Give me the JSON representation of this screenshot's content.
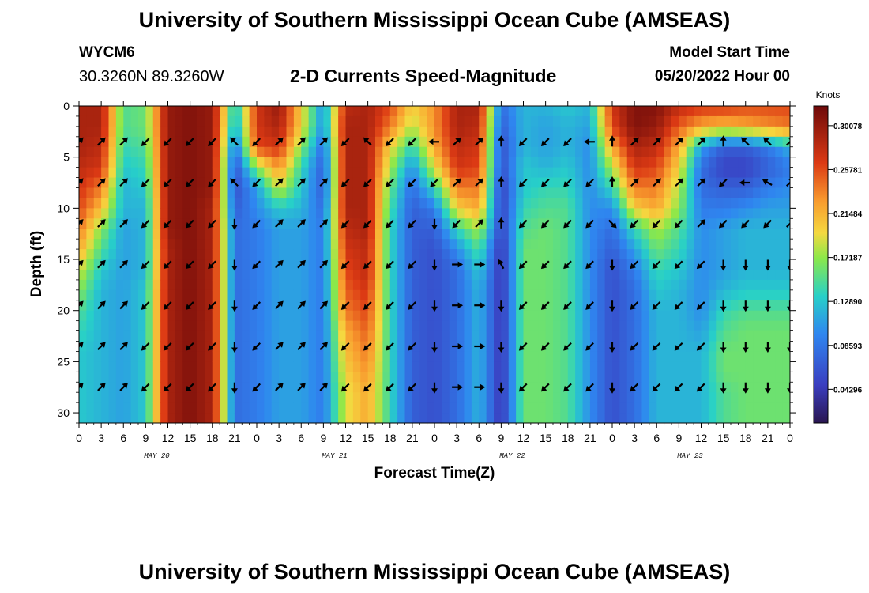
{
  "titles": {
    "main": "University of Southern Mississippi Ocean Cube (AMSEAS)",
    "bottom": "University of Southern Mississippi Ocean Cube (AMSEAS)",
    "subtitle": "2-D Currents Speed-Magnitude"
  },
  "station": {
    "id": "WYCM6",
    "coordinates": "30.3260N  89.3260W"
  },
  "model": {
    "start_label": "Model Start Time",
    "start_value": "05/20/2022 Hour 00"
  },
  "chart_data": {
    "type": "heatmap",
    "title": "2-D Currents Speed-Magnitude",
    "xlabel": "Forecast Time(Z)",
    "ylabel": "Depth (ft)",
    "colorbar_units": "Knots",
    "x_ticks": [
      "0",
      "3",
      "6",
      "9",
      "12",
      "15",
      "18",
      "21",
      "0",
      "3",
      "6",
      "9",
      "12",
      "15",
      "18",
      "21",
      "0",
      "3",
      "6",
      "9",
      "12",
      "15",
      "18",
      "21",
      "0",
      "3",
      "6",
      "9",
      "12",
      "15",
      "18",
      "21",
      "0"
    ],
    "x_range_hours": [
      0,
      96
    ],
    "day_labels": [
      "MAY 20",
      "MAY 21",
      "MAY 22",
      "MAY 23"
    ],
    "y_ticks": [
      "0",
      "5",
      "10",
      "15",
      "20",
      "25",
      "30"
    ],
    "y_tick_values": [
      0,
      5,
      10,
      15,
      20,
      25,
      30
    ],
    "ylim": [
      0,
      31
    ],
    "colorbar_ticks": [
      "0.30078",
      "0.25781",
      "0.21484",
      "0.17187",
      "0.12890",
      "0.08593",
      "0.04296"
    ],
    "colorbar_tick_values": [
      0.30078,
      0.25781,
      0.21484,
      0.17187,
      0.1289,
      0.08593,
      0.04296
    ],
    "colorbar_range": [
      0.01,
      0.32
    ],
    "depths_ft": [
      0,
      2,
      4,
      6,
      8,
      10,
      12,
      14,
      16,
      18,
      20,
      22,
      24,
      26,
      28,
      30
    ],
    "time_hours": [
      0,
      3,
      6,
      9,
      12,
      15,
      18,
      21,
      24,
      27,
      30,
      33,
      36,
      39,
      42,
      45,
      48,
      51,
      54,
      57,
      60,
      63,
      66,
      69,
      72,
      75,
      78,
      81,
      84,
      87,
      90,
      93,
      96
    ],
    "speed_knots_by_depth": [
      [
        0.29,
        0.29,
        0.15,
        0.16,
        0.3,
        0.31,
        0.3,
        0.12,
        0.27,
        0.3,
        0.2,
        0.1,
        0.28,
        0.29,
        0.26,
        0.2,
        0.23,
        0.29,
        0.29,
        0.08,
        0.12,
        0.12,
        0.13,
        0.12,
        0.27,
        0.31,
        0.31,
        0.28,
        0.27,
        0.27,
        0.26,
        0.26,
        0.26
      ],
      [
        0.29,
        0.29,
        0.15,
        0.16,
        0.3,
        0.31,
        0.3,
        0.11,
        0.27,
        0.29,
        0.2,
        0.1,
        0.29,
        0.29,
        0.24,
        0.18,
        0.23,
        0.29,
        0.28,
        0.07,
        0.12,
        0.11,
        0.12,
        0.11,
        0.26,
        0.31,
        0.3,
        0.25,
        0.22,
        0.21,
        0.22,
        0.23,
        0.24
      ],
      [
        0.29,
        0.28,
        0.14,
        0.15,
        0.3,
        0.31,
        0.3,
        0.08,
        0.26,
        0.27,
        0.17,
        0.08,
        0.29,
        0.29,
        0.2,
        0.14,
        0.22,
        0.28,
        0.27,
        0.06,
        0.12,
        0.11,
        0.12,
        0.1,
        0.22,
        0.29,
        0.28,
        0.22,
        0.11,
        0.07,
        0.07,
        0.09,
        0.12
      ],
      [
        0.28,
        0.27,
        0.13,
        0.14,
        0.3,
        0.31,
        0.3,
        0.06,
        0.17,
        0.23,
        0.14,
        0.07,
        0.29,
        0.29,
        0.18,
        0.1,
        0.19,
        0.27,
        0.26,
        0.06,
        0.13,
        0.12,
        0.13,
        0.1,
        0.18,
        0.27,
        0.26,
        0.2,
        0.08,
        0.05,
        0.05,
        0.07,
        0.09
      ],
      [
        0.27,
        0.24,
        0.12,
        0.13,
        0.3,
        0.31,
        0.3,
        0.06,
        0.11,
        0.19,
        0.13,
        0.07,
        0.29,
        0.29,
        0.16,
        0.08,
        0.14,
        0.24,
        0.24,
        0.05,
        0.13,
        0.14,
        0.14,
        0.1,
        0.14,
        0.24,
        0.24,
        0.18,
        0.08,
        0.07,
        0.07,
        0.09,
        0.1
      ],
      [
        0.26,
        0.21,
        0.12,
        0.12,
        0.3,
        0.31,
        0.29,
        0.07,
        0.1,
        0.13,
        0.12,
        0.08,
        0.29,
        0.29,
        0.15,
        0.07,
        0.09,
        0.2,
        0.22,
        0.05,
        0.14,
        0.15,
        0.15,
        0.1,
        0.1,
        0.2,
        0.22,
        0.17,
        0.09,
        0.09,
        0.1,
        0.11,
        0.11
      ],
      [
        0.24,
        0.17,
        0.11,
        0.12,
        0.3,
        0.31,
        0.29,
        0.08,
        0.09,
        0.11,
        0.11,
        0.09,
        0.28,
        0.29,
        0.14,
        0.07,
        0.07,
        0.14,
        0.18,
        0.05,
        0.15,
        0.16,
        0.15,
        0.1,
        0.08,
        0.14,
        0.18,
        0.15,
        0.1,
        0.11,
        0.12,
        0.12,
        0.12
      ],
      [
        0.22,
        0.15,
        0.11,
        0.12,
        0.29,
        0.31,
        0.29,
        0.08,
        0.09,
        0.11,
        0.11,
        0.09,
        0.27,
        0.28,
        0.14,
        0.07,
        0.06,
        0.1,
        0.15,
        0.04,
        0.16,
        0.16,
        0.15,
        0.1,
        0.07,
        0.11,
        0.16,
        0.14,
        0.1,
        0.11,
        0.12,
        0.12,
        0.12
      ],
      [
        0.19,
        0.13,
        0.11,
        0.12,
        0.29,
        0.31,
        0.29,
        0.08,
        0.09,
        0.11,
        0.11,
        0.09,
        0.26,
        0.28,
        0.14,
        0.07,
        0.06,
        0.08,
        0.13,
        0.04,
        0.16,
        0.16,
        0.15,
        0.1,
        0.06,
        0.09,
        0.14,
        0.13,
        0.1,
        0.11,
        0.12,
        0.12,
        0.12
      ],
      [
        0.17,
        0.12,
        0.11,
        0.13,
        0.29,
        0.31,
        0.29,
        0.08,
        0.09,
        0.11,
        0.11,
        0.09,
        0.25,
        0.27,
        0.14,
        0.07,
        0.06,
        0.08,
        0.12,
        0.04,
        0.16,
        0.16,
        0.15,
        0.1,
        0.06,
        0.08,
        0.13,
        0.12,
        0.1,
        0.12,
        0.13,
        0.13,
        0.13
      ],
      [
        0.15,
        0.12,
        0.11,
        0.13,
        0.29,
        0.31,
        0.29,
        0.08,
        0.09,
        0.11,
        0.11,
        0.09,
        0.24,
        0.26,
        0.14,
        0.07,
        0.06,
        0.08,
        0.12,
        0.04,
        0.16,
        0.16,
        0.15,
        0.1,
        0.06,
        0.08,
        0.12,
        0.12,
        0.1,
        0.14,
        0.15,
        0.15,
        0.15
      ],
      [
        0.14,
        0.12,
        0.11,
        0.13,
        0.29,
        0.31,
        0.29,
        0.08,
        0.09,
        0.11,
        0.11,
        0.09,
        0.22,
        0.25,
        0.14,
        0.07,
        0.06,
        0.08,
        0.12,
        0.04,
        0.16,
        0.16,
        0.15,
        0.1,
        0.06,
        0.08,
        0.12,
        0.12,
        0.11,
        0.15,
        0.16,
        0.16,
        0.16
      ],
      [
        0.13,
        0.12,
        0.11,
        0.13,
        0.29,
        0.31,
        0.29,
        0.08,
        0.09,
        0.11,
        0.11,
        0.09,
        0.21,
        0.24,
        0.14,
        0.07,
        0.06,
        0.08,
        0.12,
        0.04,
        0.16,
        0.16,
        0.15,
        0.1,
        0.06,
        0.08,
        0.12,
        0.12,
        0.12,
        0.16,
        0.16,
        0.16,
        0.16
      ],
      [
        0.13,
        0.12,
        0.11,
        0.13,
        0.29,
        0.31,
        0.29,
        0.08,
        0.09,
        0.11,
        0.11,
        0.09,
        0.2,
        0.23,
        0.14,
        0.07,
        0.06,
        0.08,
        0.12,
        0.04,
        0.16,
        0.16,
        0.15,
        0.1,
        0.06,
        0.08,
        0.12,
        0.12,
        0.12,
        0.16,
        0.16,
        0.16,
        0.16
      ],
      [
        0.13,
        0.12,
        0.11,
        0.13,
        0.29,
        0.31,
        0.29,
        0.08,
        0.09,
        0.11,
        0.11,
        0.09,
        0.19,
        0.22,
        0.14,
        0.07,
        0.06,
        0.08,
        0.12,
        0.04,
        0.16,
        0.16,
        0.15,
        0.1,
        0.06,
        0.08,
        0.12,
        0.12,
        0.12,
        0.15,
        0.16,
        0.16,
        0.16
      ],
      [
        0.13,
        0.12,
        0.11,
        0.13,
        0.29,
        0.31,
        0.29,
        0.08,
        0.09,
        0.11,
        0.11,
        0.09,
        0.19,
        0.22,
        0.14,
        0.07,
        0.06,
        0.08,
        0.12,
        0.04,
        0.16,
        0.16,
        0.15,
        0.1,
        0.06,
        0.08,
        0.12,
        0.12,
        0.12,
        0.15,
        0.16,
        0.16,
        0.16
      ]
    ],
    "arrow_rows_depth_ft": [
      3.5,
      7.5,
      11.5,
      15.5,
      19.5,
      23.5,
      27.5
    ],
    "arrow_direction_deg_by_row": [
      [
        45,
        45,
        45,
        225,
        225,
        225,
        225,
        315,
        225,
        45,
        45,
        45,
        225,
        315,
        225,
        225,
        270,
        45,
        45,
        0,
        225,
        225,
        225,
        270,
        0,
        45,
        45,
        45,
        45,
        0,
        315,
        315,
        45
      ],
      [
        45,
        45,
        45,
        225,
        225,
        225,
        225,
        315,
        225,
        45,
        45,
        45,
        225,
        225,
        225,
        225,
        225,
        45,
        45,
        0,
        225,
        225,
        225,
        225,
        0,
        45,
        45,
        45,
        45,
        225,
        270,
        300,
        45
      ],
      [
        45,
        45,
        45,
        225,
        225,
        225,
        225,
        180,
        225,
        45,
        45,
        45,
        225,
        225,
        225,
        225,
        180,
        225,
        45,
        0,
        225,
        225,
        225,
        225,
        135,
        225,
        225,
        225,
        45,
        225,
        225,
        225,
        45
      ],
      [
        45,
        45,
        45,
        225,
        225,
        225,
        225,
        180,
        225,
        45,
        45,
        45,
        225,
        225,
        225,
        225,
        180,
        90,
        90,
        330,
        225,
        225,
        225,
        225,
        180,
        225,
        225,
        225,
        225,
        180,
        180,
        180,
        180
      ],
      [
        45,
        45,
        45,
        225,
        225,
        225,
        225,
        180,
        225,
        45,
        45,
        45,
        225,
        225,
        225,
        225,
        180,
        90,
        90,
        180,
        225,
        225,
        225,
        225,
        180,
        225,
        225,
        225,
        225,
        180,
        180,
        180,
        180
      ],
      [
        45,
        45,
        45,
        225,
        225,
        225,
        225,
        180,
        225,
        45,
        45,
        45,
        225,
        225,
        225,
        225,
        180,
        90,
        90,
        180,
        225,
        225,
        225,
        225,
        180,
        225,
        225,
        225,
        225,
        180,
        180,
        180,
        180
      ],
      [
        45,
        45,
        45,
        225,
        225,
        225,
        225,
        180,
        225,
        45,
        45,
        45,
        225,
        225,
        225,
        225,
        180,
        90,
        90,
        180,
        225,
        225,
        225,
        225,
        180,
        225,
        225,
        225,
        225,
        180,
        180,
        180,
        180
      ]
    ]
  }
}
